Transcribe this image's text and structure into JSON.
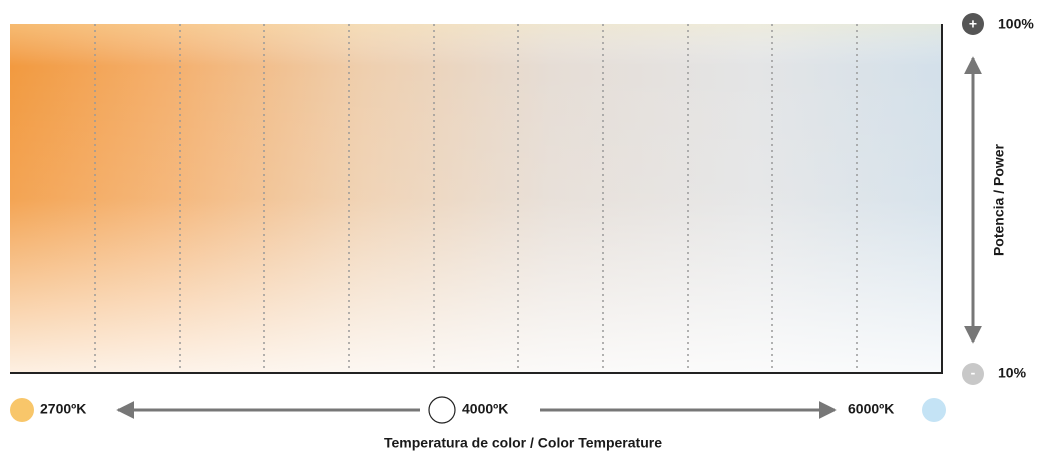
{
  "diagram": {
    "power": {
      "max_sign": "+",
      "max": "100%",
      "min_sign": "-",
      "min": "10%",
      "label": "Potencia / Power"
    },
    "temperature": {
      "warm": "2700ºK",
      "neutral": "4000ºK",
      "cool": "6000ºK",
      "label": "Temperatura de color / Color Temperature"
    }
  }
}
